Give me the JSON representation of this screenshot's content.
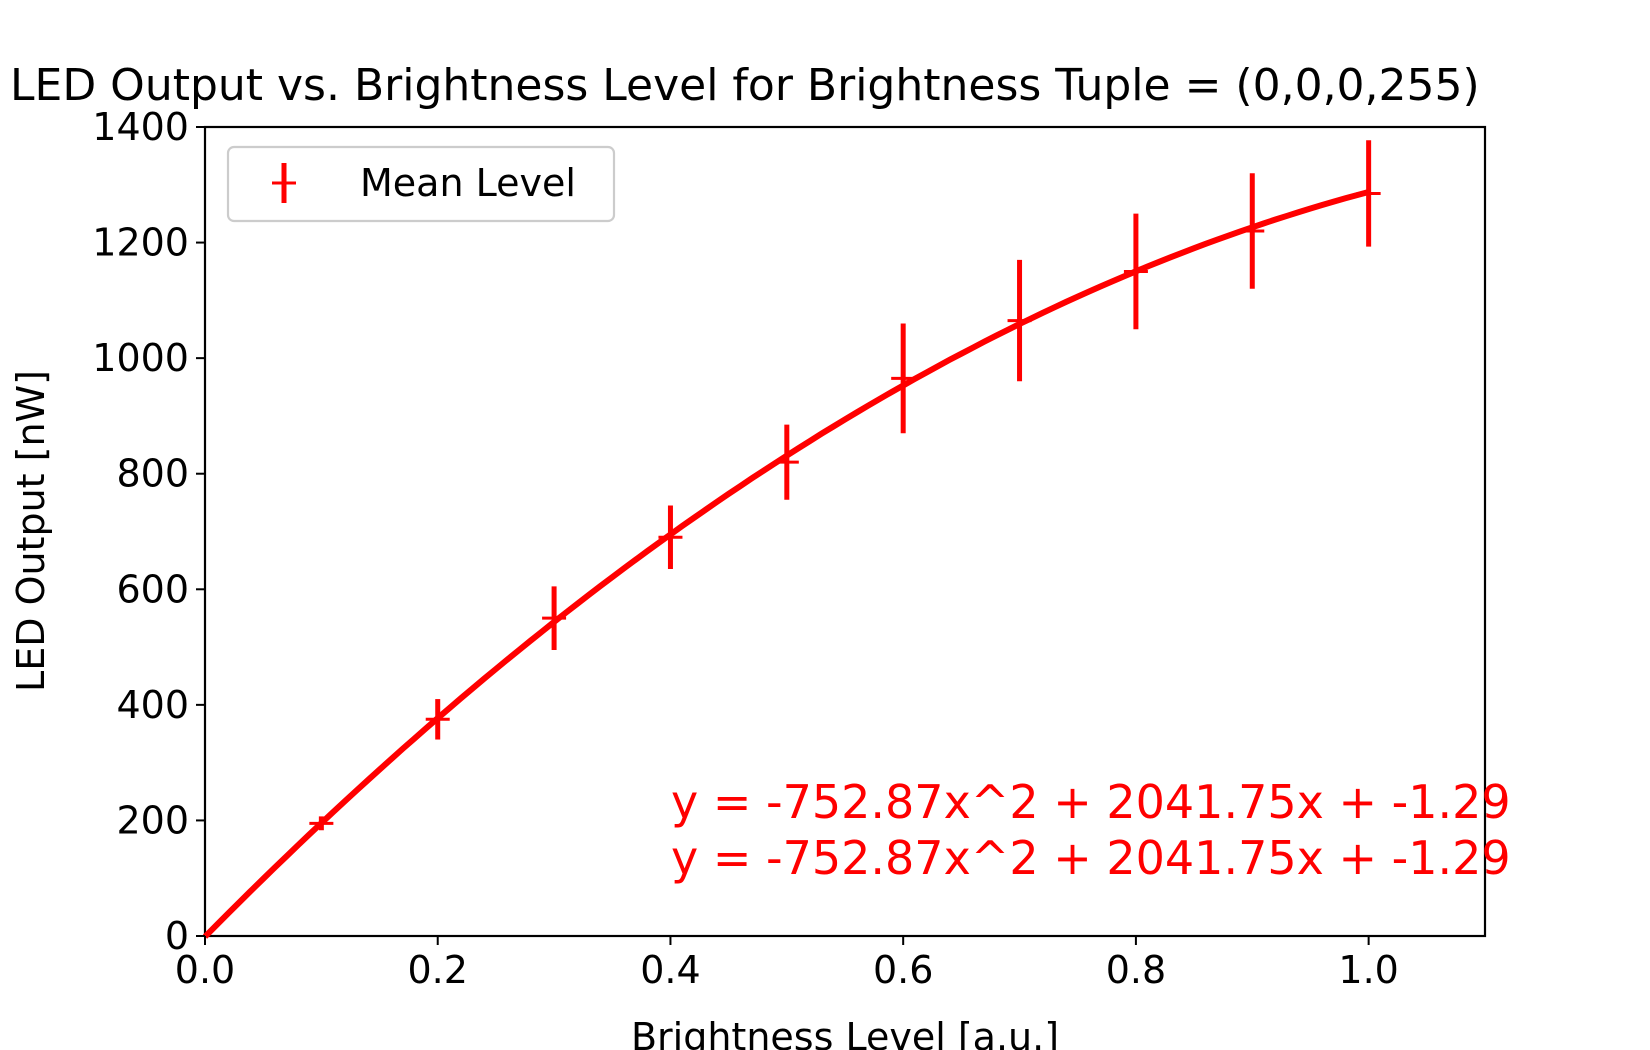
{
  "chart_data": {
    "type": "line",
    "title": "LED Output vs. Brightness Level for Brightness Tuple = (0,0,0,255)",
    "xlabel": "Brightness Level [a.u.]",
    "ylabel": "LED Output [nW]",
    "xlim": [
      0.0,
      1.1
    ],
    "ylim": [
      0,
      1400
    ],
    "xticks": [
      "0.0",
      "0.2",
      "0.4",
      "0.6",
      "0.8",
      "1.0"
    ],
    "yticks": [
      "0",
      "200",
      "400",
      "600",
      "800",
      "1000",
      "1200",
      "1400"
    ],
    "grid": false,
    "legend": {
      "position": "upper-left",
      "entries": [
        "Mean Level"
      ]
    },
    "color": "#ff0000",
    "series": [
      {
        "name": "Mean Level",
        "x": [
          0.1,
          0.2,
          0.3,
          0.4,
          0.5,
          0.6,
          0.7,
          0.8,
          0.9,
          1.0
        ],
        "y": [
          195,
          375,
          550,
          690,
          820,
          965,
          1065,
          1150,
          1220,
          1285
        ],
        "error": [
          12,
          35,
          55,
          55,
          65,
          95,
          105,
          100,
          100,
          92
        ]
      }
    ],
    "fit": {
      "x": [
        0.0,
        1.0
      ],
      "a": -752.87,
      "b": 2041.75,
      "c": -1.29
    },
    "annotations": [
      "y = -752.87x^2 + 2041.75x + -1.29",
      "y = -752.87x^2 + 2041.75x + -1.29"
    ]
  }
}
